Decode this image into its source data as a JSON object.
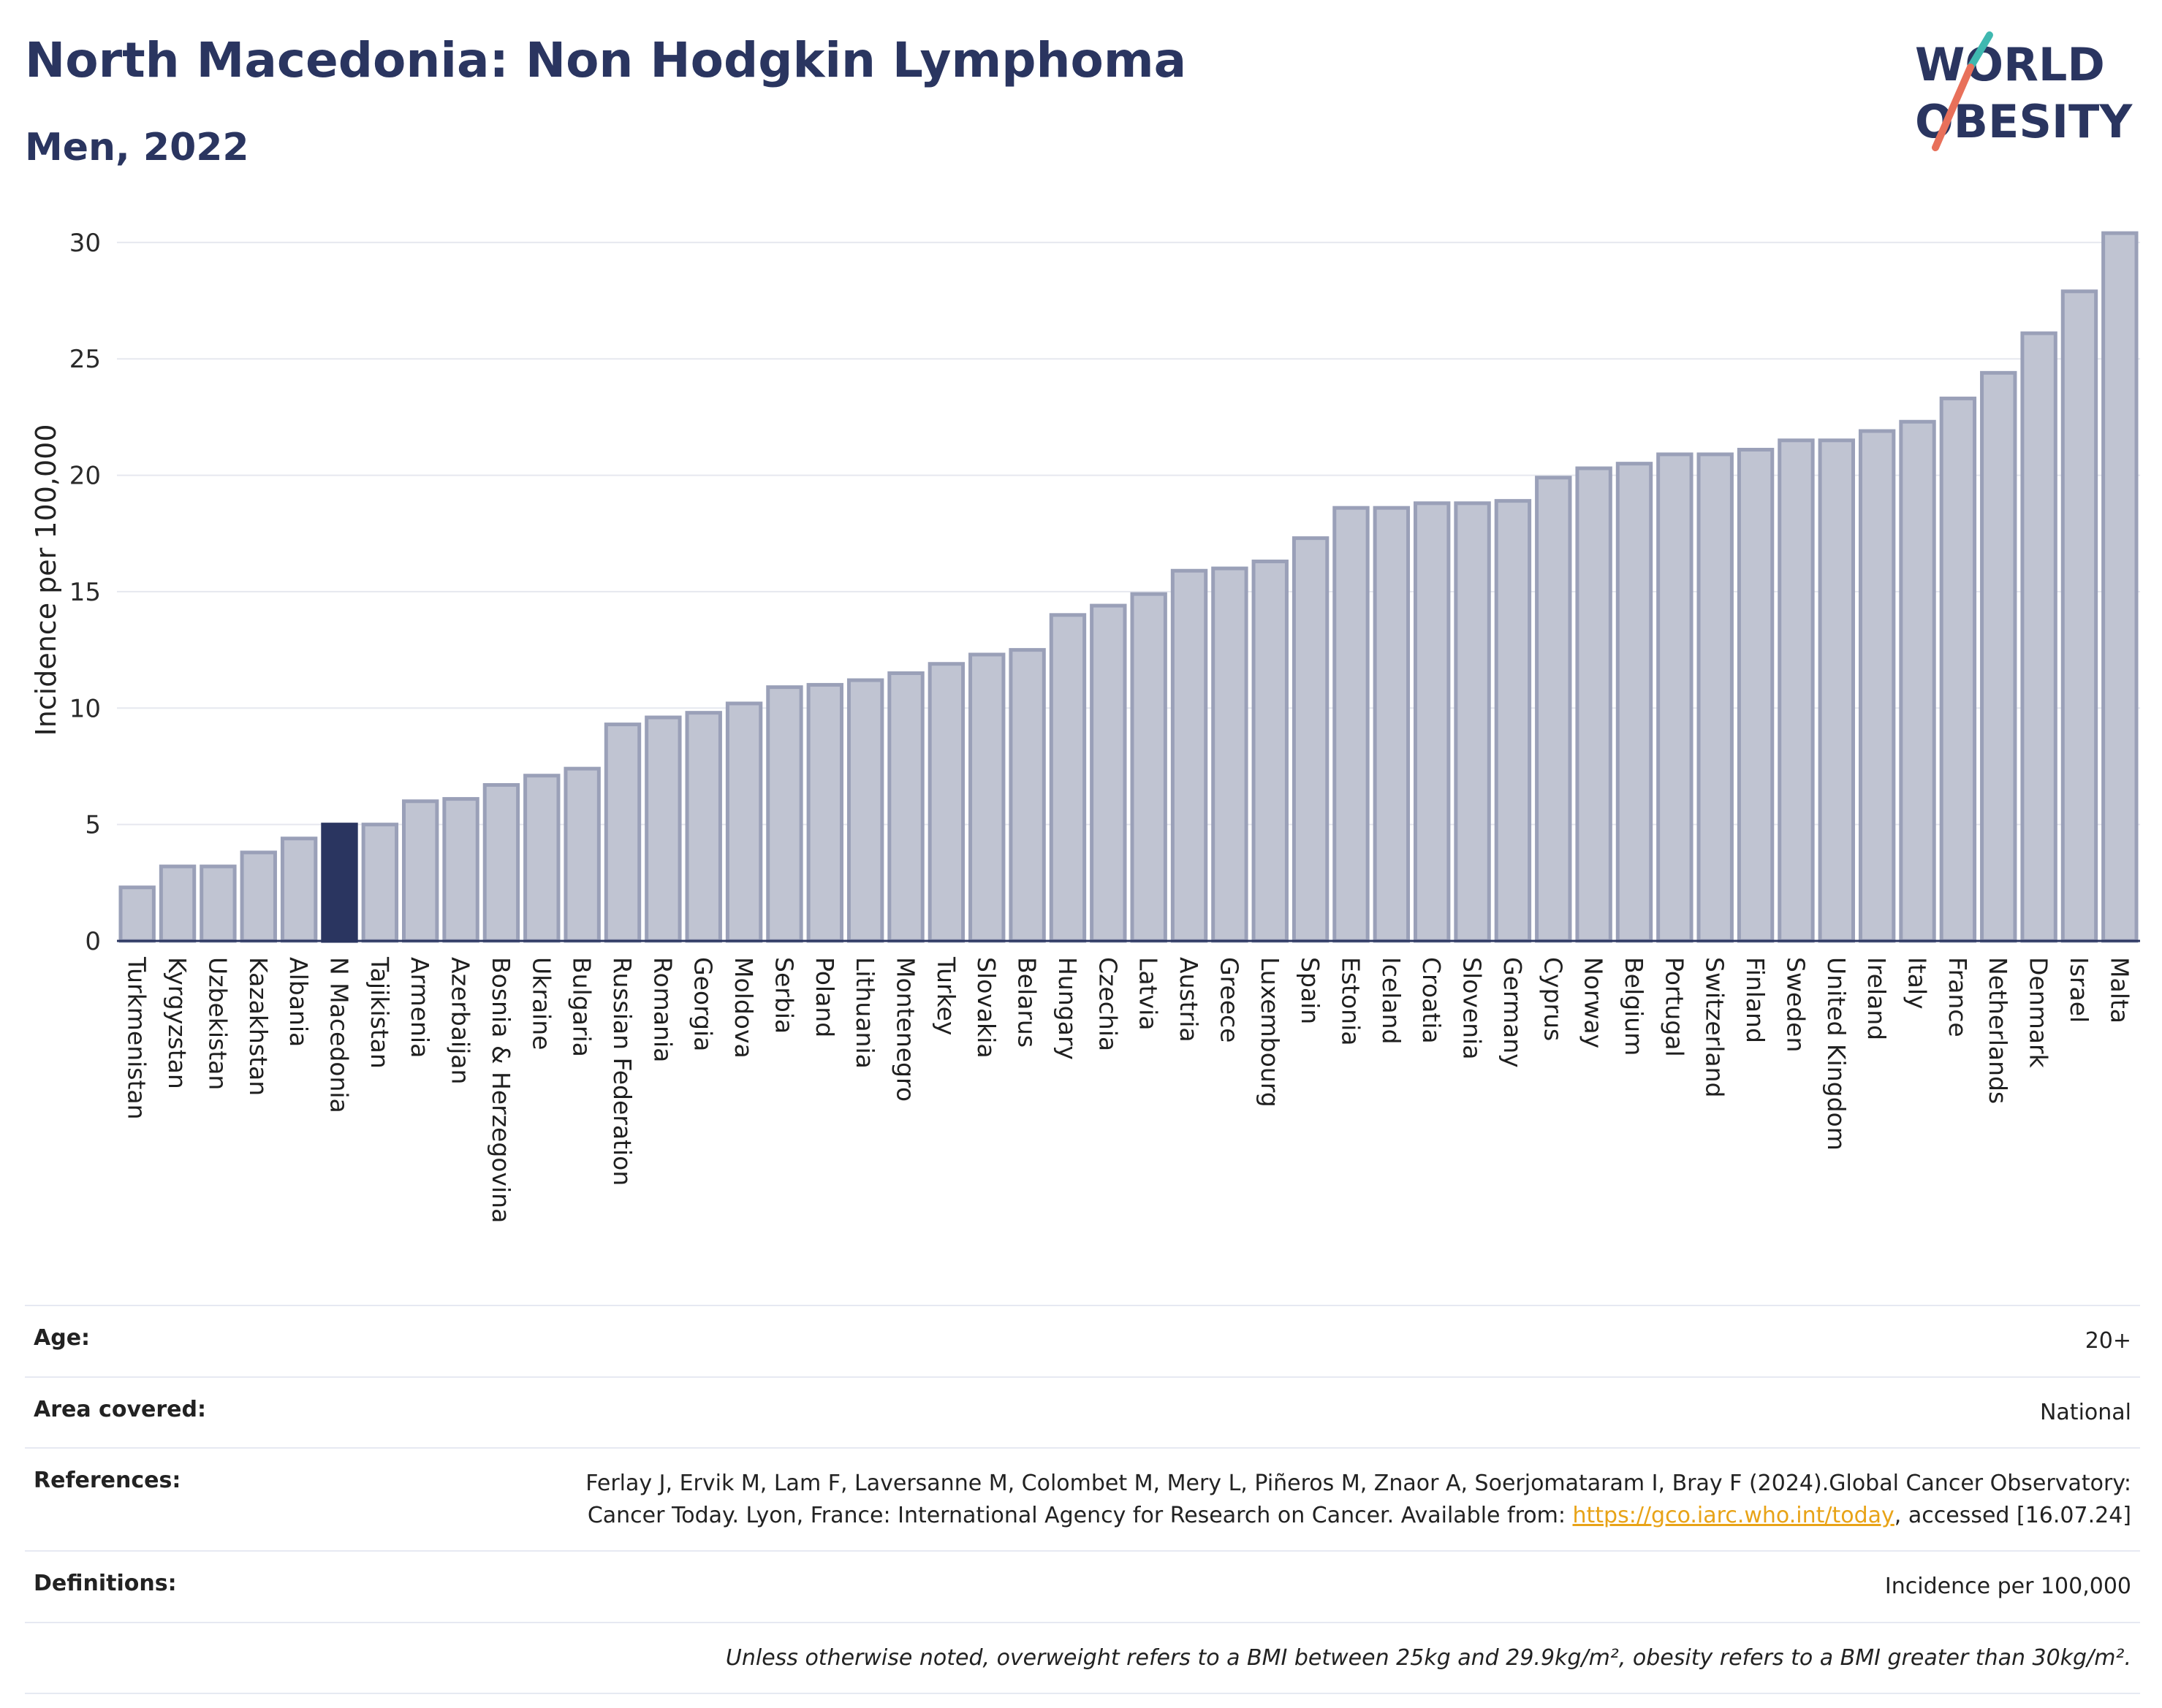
{
  "header": {
    "title": "North Macedonia: Non Hodgkin Lymphoma",
    "subtitle": "Men, 2022"
  },
  "logo": {
    "line1": "WORLD",
    "line2": "OBESITY"
  },
  "colors": {
    "bar": "#c0c4d2",
    "bar_stroke": "#9aa0b8",
    "highlight": "#2a3560",
    "grid": "#e6e8ef"
  },
  "chart_data": {
    "type": "bar",
    "ylabel": "Incidence per 100,000",
    "ylim": [
      0,
      31
    ],
    "yticks": [
      0,
      5,
      10,
      15,
      20,
      25,
      30
    ],
    "highlight": "N Macedonia",
    "categories": [
      "Turkmenistan",
      "Kyrgyzstan",
      "Uzbekistan",
      "Kazakhstan",
      "Albania",
      "N Macedonia",
      "Tajikistan",
      "Armenia",
      "Azerbaijan",
      "Bosnia & Herzegovina",
      "Ukraine",
      "Bulgaria",
      "Russian Federation",
      "Romania",
      "Georgia",
      "Moldova",
      "Serbia",
      "Poland",
      "Lithuania",
      "Montenegro",
      "Turkey",
      "Slovakia",
      "Belarus",
      "Hungary",
      "Czechia",
      "Latvia",
      "Austria",
      "Greece",
      "Luxembourg",
      "Spain",
      "Estonia",
      "Iceland",
      "Croatia",
      "Slovenia",
      "Germany",
      "Cyprus",
      "Norway",
      "Belgium",
      "Portugal",
      "Switzerland",
      "Finland",
      "Sweden",
      "United Kingdom",
      "Ireland",
      "Italy",
      "France",
      "Netherlands",
      "Denmark",
      "Israel",
      "Malta"
    ],
    "values": [
      2.3,
      3.2,
      3.2,
      3.8,
      4.4,
      5.0,
      5.0,
      6.0,
      6.1,
      6.7,
      7.1,
      7.4,
      9.3,
      9.6,
      9.8,
      10.2,
      10.9,
      11.0,
      11.2,
      11.5,
      11.9,
      12.3,
      12.5,
      14.0,
      14.4,
      14.9,
      15.9,
      16.0,
      16.3,
      17.3,
      18.6,
      18.6,
      18.8,
      18.8,
      18.9,
      19.9,
      20.3,
      20.5,
      20.9,
      20.9,
      21.1,
      21.5,
      21.5,
      21.9,
      22.3,
      23.3,
      24.4,
      26.1,
      27.9,
      30.4
    ]
  },
  "info": {
    "age": {
      "label": "Age:",
      "value": "20+"
    },
    "area": {
      "label": "Area covered:",
      "value": "National"
    },
    "references": {
      "label": "References:",
      "text1": "Ferlay J, Ervik M, Lam F, Laversanne M, Colombet M, Mery L, Piñeros M, Znaor A, Soerjomataram I, Bray F (2024).Global Cancer Observatory: Cancer Today. Lyon, France: International Agency for Research on Cancer. Available from: ",
      "link": "https://gco.iarc.who.int/today",
      "text2": ", accessed [16.07.24]"
    },
    "definitions": {
      "label": "Definitions:",
      "value": "Incidence per 100,000"
    },
    "note": "Unless otherwise noted, overweight refers to a BMI between 25kg and 29.9kg/m², obesity refers to a BMI greater than 30kg/m²."
  }
}
